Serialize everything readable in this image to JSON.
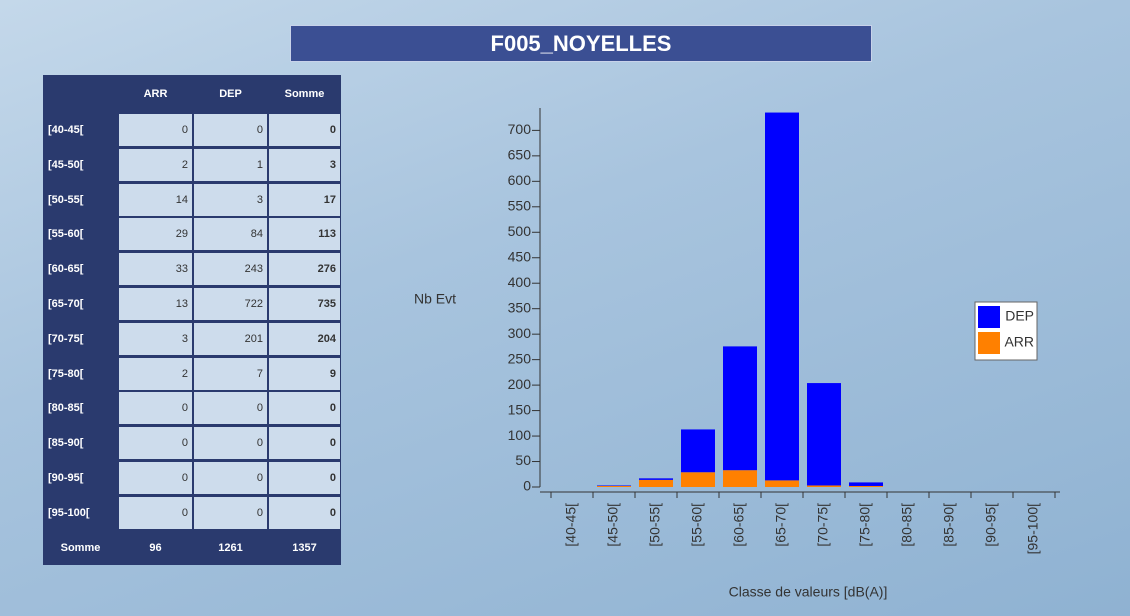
{
  "title": "F005_NOYELLES",
  "table": {
    "columns": [
      "ARR",
      "DEP",
      "Somme"
    ],
    "rows": [
      {
        "label": "[40-45[",
        "values": [
          0,
          0,
          0
        ]
      },
      {
        "label": "[45-50[",
        "values": [
          2,
          1,
          3
        ]
      },
      {
        "label": "[50-55[",
        "values": [
          14,
          3,
          17
        ]
      },
      {
        "label": "[55-60[",
        "values": [
          29,
          84,
          113
        ]
      },
      {
        "label": "[60-65[",
        "values": [
          33,
          243,
          276
        ]
      },
      {
        "label": "[65-70[",
        "values": [
          13,
          722,
          735
        ]
      },
      {
        "label": "[70-75[",
        "values": [
          3,
          201,
          204
        ]
      },
      {
        "label": "[75-80[",
        "values": [
          2,
          7,
          9
        ]
      },
      {
        "label": "[80-85[",
        "values": [
          0,
          0,
          0
        ]
      },
      {
        "label": "[85-90[",
        "values": [
          0,
          0,
          0
        ]
      },
      {
        "label": "[90-95[",
        "values": [
          0,
          0,
          0
        ]
      },
      {
        "label": "[95-100[",
        "values": [
          0,
          0,
          0
        ]
      }
    ],
    "total": {
      "label": "Somme",
      "values": [
        96,
        1261,
        1357
      ]
    }
  },
  "chart_data": {
    "type": "stacked_bar",
    "x_label": "Classe de valeurs [dB(A)]",
    "y_label": "Nb Evt",
    "categories": [
      "[40-45[",
      "[45-50[",
      "[50-55[",
      "[55-60[",
      "[60-65[",
      "[65-70[",
      "[70-75[",
      "[75-80[",
      "[80-85[",
      "[85-90[",
      "[90-95[",
      "[95-100["
    ],
    "series": [
      {
        "name": "ARR",
        "color": "#ff8000",
        "values": [
          0,
          2,
          14,
          29,
          33,
          13,
          3,
          2,
          0,
          0,
          0,
          0
        ]
      },
      {
        "name": "DEP",
        "color": "#0000ff",
        "values": [
          0,
          1,
          3,
          84,
          243,
          722,
          201,
          7,
          0,
          0,
          0,
          0
        ]
      }
    ],
    "ylim": [
      0,
      740
    ],
    "yticks": [
      0,
      50,
      100,
      150,
      200,
      250,
      300,
      350,
      400,
      450,
      500,
      550,
      600,
      650,
      700
    ],
    "legend": "right"
  }
}
